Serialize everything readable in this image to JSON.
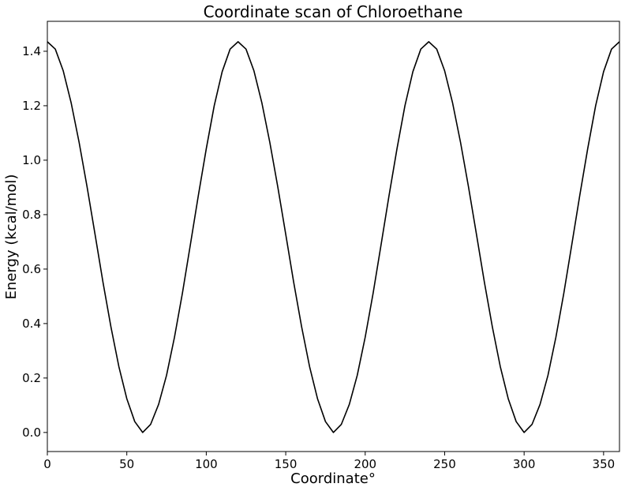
{
  "chart_data": {
    "type": "line",
    "title": "Coordinate scan of Chloroethane",
    "xlabel": "Coordinate°",
    "ylabel": "Energy (kcal/mol)",
    "xlim": [
      0,
      360
    ],
    "ylim": [
      -0.07,
      1.51
    ],
    "grid": false,
    "legend": "none",
    "xticks": [
      0,
      50,
      100,
      150,
      200,
      250,
      300,
      350
    ],
    "xtick_labels": [
      "0",
      "50",
      "100",
      "150",
      "200",
      "250",
      "300",
      "350"
    ],
    "yticks": [
      0.0,
      0.2,
      0.4,
      0.6,
      0.8,
      1.0,
      1.2,
      1.4
    ],
    "ytick_labels": [
      "0.0",
      "0.2",
      "0.4",
      "0.6",
      "0.8",
      "1.0",
      "1.2",
      "1.4"
    ],
    "series": [
      {
        "color": "#000000",
        "x": [
          0,
          5,
          10,
          15,
          20,
          25,
          30,
          35,
          40,
          45,
          50,
          55,
          60,
          65,
          70,
          75,
          80,
          85,
          90,
          95,
          100,
          105,
          110,
          115,
          120,
          125,
          130,
          135,
          140,
          145,
          150,
          155,
          160,
          165,
          170,
          175,
          180,
          185,
          190,
          195,
          200,
          205,
          210,
          215,
          220,
          225,
          230,
          235,
          240,
          245,
          250,
          255,
          260,
          265,
          270,
          275,
          280,
          285,
          290,
          295,
          300,
          305,
          310,
          315,
          320,
          325,
          330,
          335,
          340,
          345,
          350,
          355,
          360
        ],
        "y": [
          1.435,
          1.408,
          1.328,
          1.21,
          1.065,
          0.902,
          0.728,
          0.552,
          0.388,
          0.242,
          0.124,
          0.04,
          0.0,
          0.03,
          0.103,
          0.21,
          0.35,
          0.512,
          0.69,
          0.87,
          1.042,
          1.2,
          1.325,
          1.408,
          1.435,
          1.408,
          1.328,
          1.21,
          1.065,
          0.902,
          0.728,
          0.552,
          0.388,
          0.242,
          0.124,
          0.04,
          0.0,
          0.03,
          0.103,
          0.21,
          0.35,
          0.512,
          0.69,
          0.87,
          1.042,
          1.2,
          1.325,
          1.408,
          1.435,
          1.408,
          1.328,
          1.21,
          1.065,
          0.902,
          0.728,
          0.552,
          0.388,
          0.242,
          0.124,
          0.04,
          0.0,
          0.03,
          0.103,
          0.21,
          0.35,
          0.512,
          0.69,
          0.87,
          1.042,
          1.2,
          1.325,
          1.408,
          1.435
        ]
      }
    ]
  }
}
